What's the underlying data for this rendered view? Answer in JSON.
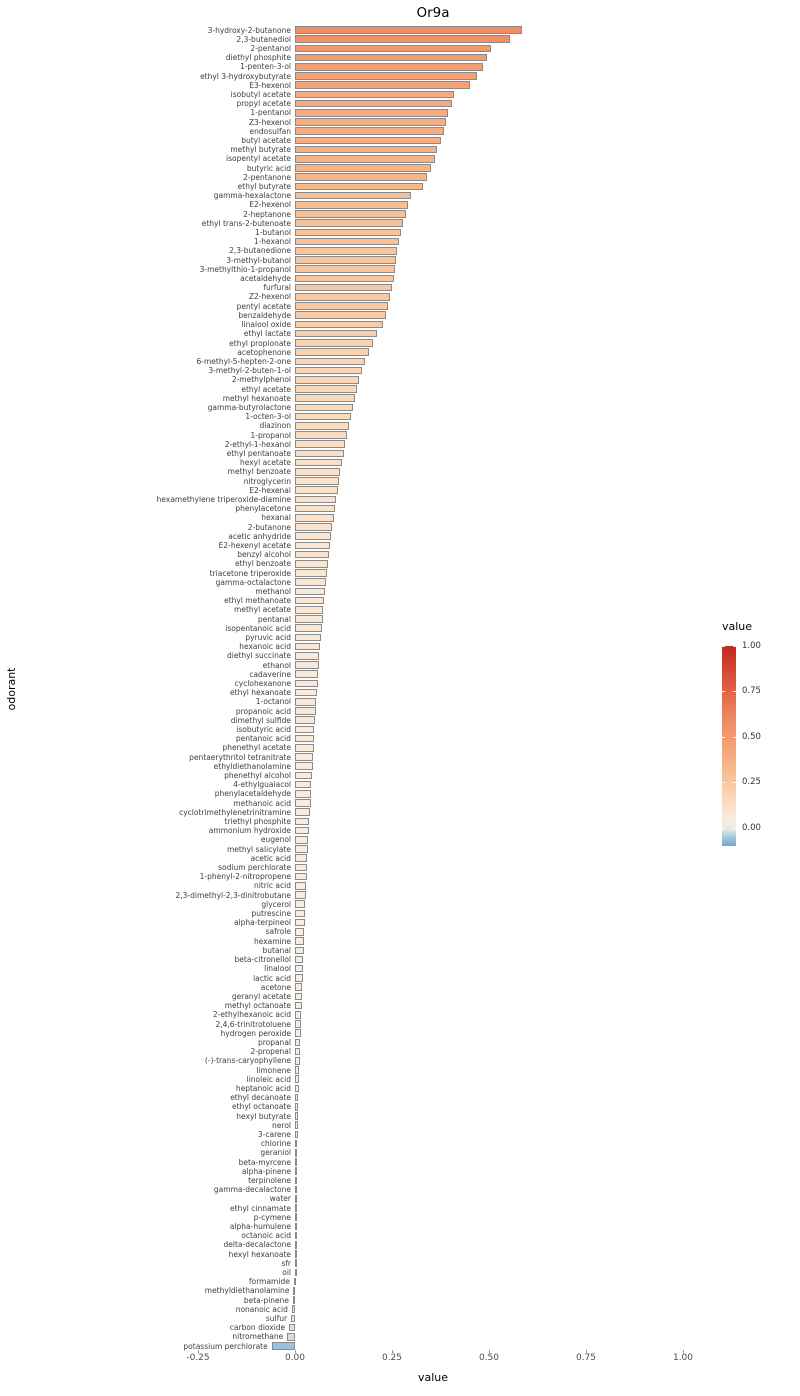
{
  "chart_data": {
    "type": "bar",
    "orientation": "horizontal",
    "title": "Or9a",
    "xlabel": "value",
    "ylabel": "odorant",
    "xlim": [
      -0.25,
      1.0
    ],
    "grid": false,
    "x_ticks": [
      "-0.25",
      "0.00",
      "0.25",
      "0.50",
      "0.75",
      "1.00"
    ],
    "x_tick_values": [
      -0.25,
      0.0,
      0.25,
      0.5,
      0.75,
      1.0
    ],
    "legend": {
      "title": "value",
      "position": "right",
      "ticks": [
        "1.00",
        "0.75",
        "0.50",
        "0.25",
        "0.00"
      ],
      "tick_values": [
        1.0,
        0.75,
        0.5,
        0.25,
        0.0
      ],
      "range": [
        -0.1,
        1.0
      ]
    },
    "colors": {
      "background": "#ffffff",
      "bar_outline": "#8a8a8a",
      "axis_text": "#4d4d4d",
      "high": "#c3271d",
      "low": "#74a9d0",
      "zero": "#f5f0ea"
    },
    "color_scale": [
      {
        "v": -0.1,
        "c": "#74a9d0"
      },
      {
        "v": -0.04,
        "c": "#aecde3"
      },
      {
        "v": 0.0,
        "c": "#f5f0ea"
      },
      {
        "v": 0.08,
        "c": "#fae7d3"
      },
      {
        "v": 0.18,
        "c": "#f9d5b3"
      },
      {
        "v": 0.3,
        "c": "#f7bd92"
      },
      {
        "v": 0.45,
        "c": "#f3a379"
      },
      {
        "v": 0.6,
        "c": "#ee8a62"
      },
      {
        "v": 0.78,
        "c": "#e05c44"
      },
      {
        "v": 1.0,
        "c": "#c3271d"
      }
    ],
    "categories": [
      "3-hydroxy-2-butanone",
      "2,3-butanediol",
      "2-pentanol",
      "diethyl phosphite",
      "1-penten-3-ol",
      "ethyl 3-hydroxybutyrate",
      "E3-hexenol",
      "isobutyl acetate",
      "propyl acetate",
      "1-pentanol",
      "Z3-hexenol",
      "endosulfan",
      "butyl acetate",
      "methyl butyrate",
      "isopentyl acetate",
      "butyric acid",
      "2-pentanone",
      "ethyl butyrate",
      "gamma-hexalactone",
      "E2-hexenol",
      "2-heptanone",
      "ethyl trans-2-butenoate",
      "1-butanol",
      "1-hexanol",
      "2,3-butanedione",
      "3-methyl-butanol",
      "3-methylthio-1-propanol",
      "acetaldehyde",
      "furfural",
      "Z2-hexenol",
      "pentyl acetate",
      "benzaldehyde",
      "linalool oxide",
      "ethyl lactate",
      "ethyl propionate",
      "acetophenone",
      "6-methyl-5-hepten-2-one",
      "3-methyl-2-buten-1-ol",
      "2-methylphenol",
      "ethyl acetate",
      "methyl hexanoate",
      "gamma-butyrolactone",
      "1-octen-3-ol",
      "diazinon",
      "1-propanol",
      "2-ethyl-1-hexanol",
      "ethyl pentanoate",
      "hexyl acetate",
      "methyl benzoate",
      "nitroglycerin",
      "E2-hexenal",
      "hexamethylene triperoxide-diamine",
      "phenylacetone",
      "hexanal",
      "2-butanone",
      "acetic anhydride",
      "E2-hexenyl acetate",
      "benzyl alcohol",
      "ethyl benzoate",
      "triacetone triperoxide",
      "gamma-octalactone",
      "methanol",
      "ethyl methanoate",
      "methyl acetate",
      "pentanal",
      "isopentanoic acid",
      "pyruvic acid",
      "hexanoic acid",
      "diethyl succinate",
      "ethanol",
      "cadaverine",
      "cyclohexanone",
      "ethyl hexanoate",
      "1-octanol",
      "propanoic acid",
      "dimethyl sulfide",
      "isobutyric acid",
      "pentanoic acid",
      "phenethyl acetate",
      "pentaerythritol tetranitrate",
      "ethyldiethanolamine",
      "phenethyl alcohol",
      "4-ethylguaiacol",
      "phenylacetaldehyde",
      "methanoic acid",
      "cyclotrimethylenetrinitramine",
      "triethyl phosphite",
      "ammonium hydroxide",
      "eugenol",
      "methyl salicylate",
      "acetic acid",
      "sodium perchlorate",
      "1-phenyl-2-nitropropene",
      "nitric acid",
      "2,3-dimethyl-2,3-dinitrobutane",
      "glycerol",
      "putrescine",
      "alpha-terpineol",
      "safrole",
      "hexamine",
      "butanal",
      "beta-citronellol",
      "linalool",
      "lactic acid",
      "acetone",
      "geranyl acetate",
      "methyl octanoate",
      "2-ethylhexanoic acid",
      "2,4,6-trinitrotoluene",
      "hydrogen peroxide",
      "propanal",
      "2-propenal",
      "(-)-trans-caryophyllene",
      "limonene",
      "linoleic acid",
      "heptanoic acid",
      "ethyl decanoate",
      "ethyl octanoate",
      "hexyl butyrate",
      "nerol",
      "3-carene",
      "chlorine",
      "geraniol",
      "beta-myrcene",
      "alpha-pinene",
      "terpinolene",
      "gamma-decalactone",
      "water",
      "ethyl cinnamate",
      "p-cymene",
      "alpha-humulene",
      "octanoic acid",
      "delta-decalactone",
      "hexyl hexanoate",
      "sfr",
      "oil",
      "formamide",
      "methyldiethanolamine",
      "beta-pinene",
      "nonanoic acid",
      "sulfur",
      "carbon dioxide",
      "nitromethane",
      "potassium perchlorate"
    ],
    "values": [
      0.585,
      0.555,
      0.505,
      0.495,
      0.485,
      0.47,
      0.45,
      0.41,
      0.405,
      0.395,
      0.39,
      0.385,
      0.375,
      0.365,
      0.36,
      0.35,
      0.34,
      0.33,
      0.3,
      0.29,
      0.285,
      0.278,
      0.272,
      0.268,
      0.264,
      0.26,
      0.258,
      0.254,
      0.25,
      0.246,
      0.24,
      0.234,
      0.226,
      0.212,
      0.2,
      0.19,
      0.18,
      0.172,
      0.165,
      0.16,
      0.155,
      0.15,
      0.145,
      0.14,
      0.135,
      0.13,
      0.125,
      0.121,
      0.117,
      0.113,
      0.11,
      0.106,
      0.103,
      0.1,
      0.096,
      0.093,
      0.09,
      0.088,
      0.085,
      0.082,
      0.08,
      0.078,
      0.075,
      0.073,
      0.071,
      0.069,
      0.067,
      0.065,
      0.063,
      0.061,
      0.06,
      0.058,
      0.056,
      0.055,
      0.053,
      0.052,
      0.05,
      0.049,
      0.048,
      0.047,
      0.046,
      0.044,
      0.042,
      0.041,
      0.04,
      0.038,
      0.037,
      0.036,
      0.034,
      0.033,
      0.032,
      0.031,
      0.03,
      0.029,
      0.028,
      0.027,
      0.026,
      0.025,
      0.024,
      0.023,
      0.022,
      0.021,
      0.02,
      0.02,
      0.019,
      0.018,
      0.017,
      0.016,
      0.015,
      0.015,
      0.014,
      0.013,
      0.012,
      0.011,
      0.011,
      0.01,
      0.009,
      0.009,
      0.008,
      0.008,
      0.007,
      0.006,
      0.006,
      0.005,
      0.005,
      0.004,
      0.004,
      0.003,
      0.003,
      0.002,
      0.002,
      0.002,
      0.001,
      0.001,
      0.001,
      0.0,
      -0.003,
      -0.004,
      -0.005,
      -0.008,
      -0.01,
      -0.015,
      -0.02,
      -0.06
    ]
  }
}
